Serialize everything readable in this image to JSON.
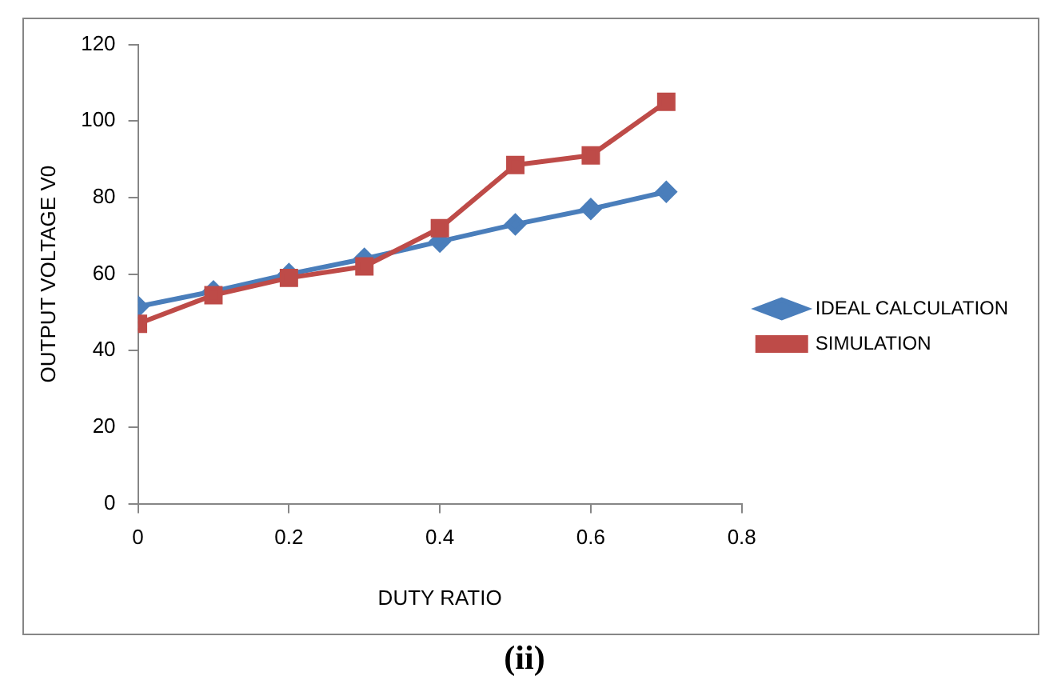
{
  "chart_data": {
    "type": "line",
    "xlabel": "DUTY RATIO",
    "ylabel": "OUTPUT VOLTAGE V0",
    "x": [
      0,
      0.1,
      0.2,
      0.3,
      0.4,
      0.5,
      0.6,
      0.7
    ],
    "series": [
      {
        "name": "IDEAL CALCULATION",
        "color": "#4a7ebb",
        "marker": "diamond",
        "values": [
          51.5,
          55.5,
          60,
          64,
          68.5,
          73,
          77,
          81.5
        ]
      },
      {
        "name": "SIMULATION",
        "color": "#be4b48",
        "marker": "square",
        "values": [
          47,
          54.5,
          59,
          62,
          72,
          88.5,
          91,
          105
        ]
      }
    ],
    "xlim": [
      0,
      0.8
    ],
    "xticks": [
      0,
      0.2,
      0.4,
      0.6,
      0.8
    ],
    "ylim": [
      0,
      120
    ],
    "yticks": [
      0,
      20,
      40,
      60,
      80,
      100,
      120
    ],
    "grid": false,
    "legend": "right",
    "line_style": "solid",
    "annotations": [
      "(ii)"
    ]
  }
}
